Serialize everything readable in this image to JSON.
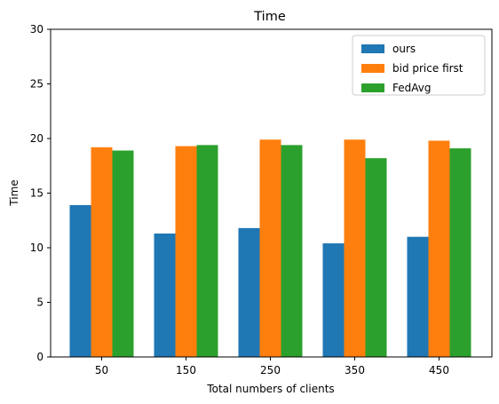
{
  "chart_data": {
    "type": "bar",
    "title": "Time",
    "xlabel": "Total numbers of clients",
    "ylabel": "Time",
    "categories": [
      "50",
      "150",
      "250",
      "350",
      "450"
    ],
    "series": [
      {
        "name": "ours",
        "color": "#1f77b4",
        "values": [
          13.9,
          11.3,
          11.8,
          10.4,
          11.0
        ]
      },
      {
        "name": "bid price first",
        "color": "#ff7f0e",
        "values": [
          19.2,
          19.3,
          19.9,
          19.9,
          19.8
        ]
      },
      {
        "name": "FedAvg",
        "color": "#2ca02c",
        "values": [
          18.9,
          19.4,
          19.4,
          18.2,
          19.1
        ]
      }
    ],
    "ylim": [
      0,
      30
    ],
    "yticks": [
      0,
      5,
      10,
      15,
      20,
      25,
      30
    ],
    "grid": false,
    "legend_position": "top-right"
  }
}
